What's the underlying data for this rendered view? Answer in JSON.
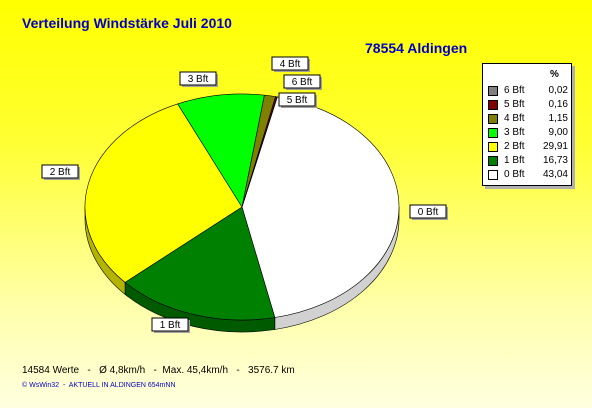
{
  "title": "Verteilung Windstärke  Juli 2010",
  "subtitle": "78554 Aldingen",
  "legend": {
    "header": "%",
    "items": [
      {
        "name": "6 Bft",
        "value": "0,02",
        "color": "#808080"
      },
      {
        "name": "5 Bft",
        "value": "0,16",
        "color": "#800000"
      },
      {
        "name": "4 Bft",
        "value": "1,15",
        "color": "#808000"
      },
      {
        "name": "3 Bft",
        "value": "9,00",
        "color": "#00ff00"
      },
      {
        "name": "2 Bft",
        "value": "29,91",
        "color": "#ffff00"
      },
      {
        "name": "1 Bft",
        "value": "16,73",
        "color": "#008000"
      },
      {
        "name": "0 Bft",
        "value": "43,04",
        "color": "#ffffff"
      }
    ]
  },
  "footer": "14584 Werte   -   Ø 4,8km/h   -  Max. 45,4km/h   -   3576.7 km",
  "credit": "© WsWin32  -  AKTUELL IN ALDINGEN 654mNN",
  "chart_data": {
    "type": "pie",
    "title": "Verteilung Windstärke  Juli 2010",
    "subtitle": "78554 Aldingen",
    "unit": "%",
    "slices": [
      {
        "label": "0 Bft",
        "value": 43.04,
        "color": "#ffffff"
      },
      {
        "label": "1 Bft",
        "value": 16.73,
        "color": "#008000"
      },
      {
        "label": "2 Bft",
        "value": 29.91,
        "color": "#ffff00"
      },
      {
        "label": "3 Bft",
        "value": 9.0,
        "color": "#00ff00"
      },
      {
        "label": "4 Bft",
        "value": 1.15,
        "color": "#808000"
      },
      {
        "label": "5 Bft",
        "value": 0.16,
        "color": "#800000"
      },
      {
        "label": "6 Bft",
        "value": 0.02,
        "color": "#808080"
      }
    ],
    "legend_position": "right",
    "three_d": true
  }
}
